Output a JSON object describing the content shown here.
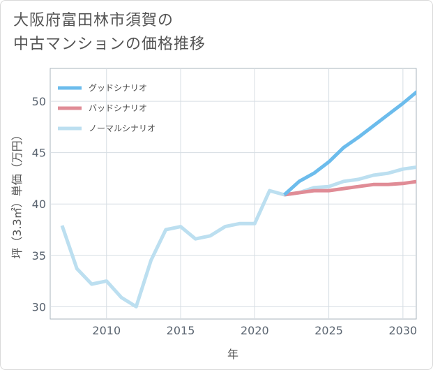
{
  "title_lines": [
    "大阪府富田林市須賀の",
    "中古マンションの価格推移"
  ],
  "chart_data": {
    "type": "line",
    "title": "大阪府富田林市須賀の中古マンションの価格推移",
    "xlabel": "年",
    "ylabel": "坪（3.3㎡）単価（万円）",
    "xlim": [
      2006.2,
      2030.9
    ],
    "ylim": [
      28.8,
      53.2
    ],
    "xticks": [
      2010,
      2015,
      2020,
      2025,
      2030
    ],
    "yticks": [
      30,
      35,
      40,
      45,
      50
    ],
    "grid": true,
    "legend_position": "top-left",
    "series": [
      {
        "name": "グッドシナリオ",
        "color": "#6cbcec",
        "x": [
          2022,
          2023,
          2024,
          2025,
          2026,
          2027,
          2028,
          2029,
          2030,
          2031
        ],
        "values": [
          40.9,
          42.2,
          43.0,
          44.1,
          45.5,
          46.5,
          47.6,
          48.7,
          49.8,
          51.0
        ]
      },
      {
        "name": "バッドシナリオ",
        "color": "#e08c96",
        "x": [
          2022,
          2023,
          2024,
          2025,
          2026,
          2027,
          2028,
          2029,
          2030,
          2031
        ],
        "values": [
          40.9,
          41.1,
          41.3,
          41.3,
          41.5,
          41.7,
          41.9,
          41.9,
          42.0,
          42.2
        ]
      },
      {
        "name": "ノーマルシナリオ",
        "color": "#bcdff0",
        "x": [
          2007,
          2008,
          2009,
          2010,
          2011,
          2012,
          2013,
          2014,
          2015,
          2016,
          2017,
          2018,
          2019,
          2020,
          2021,
          2022,
          2023,
          2024,
          2025,
          2026,
          2027,
          2028,
          2029,
          2030,
          2031
        ],
        "values": [
          37.9,
          33.7,
          32.2,
          32.5,
          30.9,
          30.0,
          34.5,
          37.5,
          37.8,
          36.6,
          36.9,
          37.8,
          38.1,
          38.1,
          41.3,
          40.9,
          41.1,
          41.6,
          41.7,
          42.2,
          42.4,
          42.8,
          43.0,
          43.4,
          43.6
        ]
      }
    ]
  }
}
